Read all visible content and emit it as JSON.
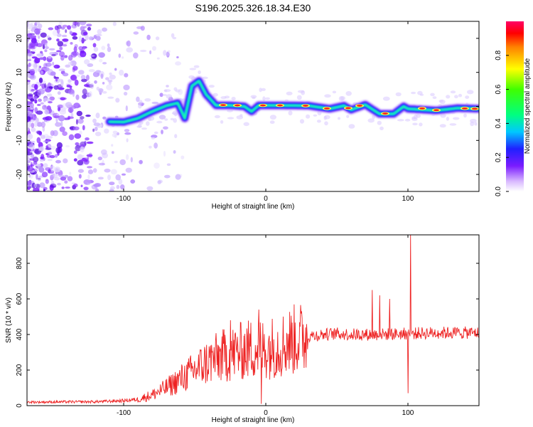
{
  "title": "S196.2025.326.18.34.E30",
  "chart_data": [
    {
      "type": "heatmap",
      "name": "spectrogram",
      "xlabel": "Height of straight line (km)",
      "ylabel": "Frequency (Hz)",
      "xlim": [
        -168,
        150
      ],
      "ylim": [
        -25,
        25
      ],
      "xticks": [
        -100,
        0,
        100
      ],
      "yticks": [
        -20,
        -10,
        0,
        10,
        20
      ],
      "colorbar": {
        "label": "Normalized spectral amplitude",
        "range": [
          0,
          1
        ],
        "ticks": [
          0.0,
          0.2,
          0.4,
          0.6,
          0.8
        ]
      },
      "ridge": [
        [
          -110,
          -4.5
        ],
        [
          -100,
          -4.6
        ],
        [
          -90,
          -3.5
        ],
        [
          -80,
          -1.5
        ],
        [
          -70,
          0.2
        ],
        [
          -62,
          1.0
        ],
        [
          -57,
          -3.5
        ],
        [
          -52,
          6.0
        ],
        [
          -47,
          7.5
        ],
        [
          -42,
          3.5
        ],
        [
          -35,
          0.3
        ],
        [
          -25,
          0.3
        ],
        [
          -15,
          0.0
        ],
        [
          -10,
          -1.5
        ],
        [
          -5,
          0.3
        ],
        [
          10,
          0.3
        ],
        [
          30,
          0.2
        ],
        [
          45,
          -0.7
        ],
        [
          55,
          0.2
        ],
        [
          60,
          -1.0
        ],
        [
          70,
          0.5
        ],
        [
          80,
          -2.2
        ],
        [
          90,
          -2.2
        ],
        [
          97,
          0.0
        ],
        [
          100,
          -0.7
        ],
        [
          120,
          -1.2
        ],
        [
          135,
          -0.5
        ],
        [
          150,
          -0.7
        ]
      ]
    },
    {
      "type": "line",
      "name": "snr",
      "xlabel": "Height of straight line (km)",
      "ylabel": "SNR (10 * v/v)",
      "xlim": [
        -168,
        150
      ],
      "ylim": [
        0,
        960
      ],
      "xticks": [
        -100,
        0,
        100
      ],
      "yticks": [
        0,
        200,
        400,
        600,
        800
      ],
      "color": "#ee2222",
      "envelope": [
        [
          -168,
          20
        ],
        [
          -120,
          22
        ],
        [
          -100,
          28
        ],
        [
          -90,
          35
        ],
        [
          -80,
          60
        ],
        [
          -70,
          100
        ],
        [
          -60,
          150
        ],
        [
          -50,
          200
        ],
        [
          -40,
          250
        ],
        [
          -30,
          280
        ],
        [
          -20,
          300
        ],
        [
          -10,
          320
        ],
        [
          0,
          320
        ],
        [
          10,
          340
        ],
        [
          20,
          370
        ],
        [
          30,
          390
        ],
        [
          40,
          400
        ],
        [
          50,
          405
        ],
        [
          60,
          400
        ],
        [
          80,
          400
        ],
        [
          100,
          405
        ],
        [
          120,
          410
        ],
        [
          150,
          410
        ]
      ],
      "spikes": [
        [
          -5,
          540
        ],
        [
          -25,
          480
        ],
        [
          75,
          650
        ],
        [
          80,
          620
        ],
        [
          87,
          600
        ],
        [
          100,
          960
        ],
        [
          102,
          960
        ],
        [
          100,
          70
        ],
        [
          -3,
          10
        ]
      ]
    }
  ]
}
